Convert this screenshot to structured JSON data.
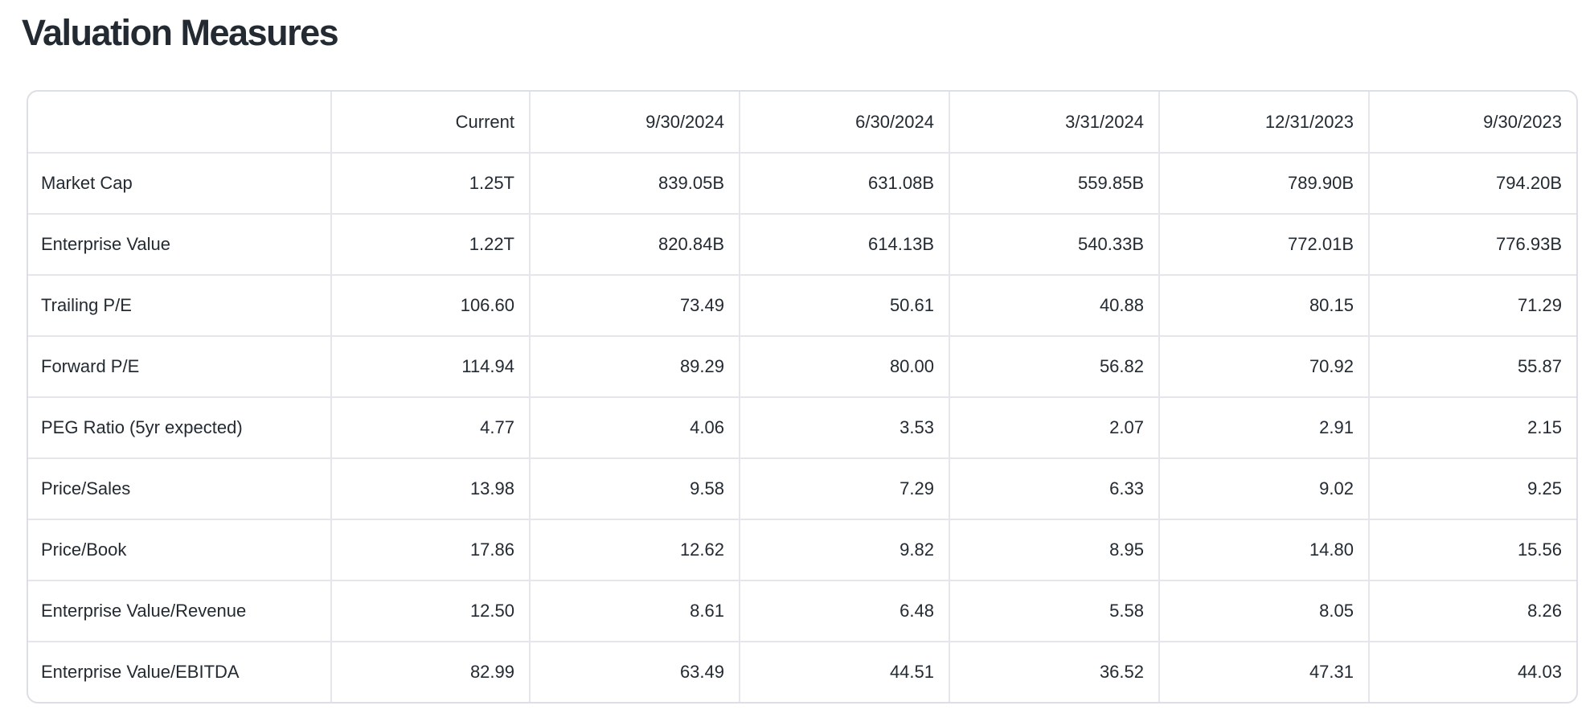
{
  "page": {
    "title": "Valuation Measures"
  },
  "table": {
    "corner_label": "",
    "columns": [
      "Current",
      "9/30/2024",
      "6/30/2024",
      "3/31/2024",
      "12/31/2023",
      "9/30/2023"
    ],
    "rows": [
      {
        "label": "Market Cap",
        "values": [
          "1.25T",
          "839.05B",
          "631.08B",
          "559.85B",
          "789.90B",
          "794.20B"
        ]
      },
      {
        "label": "Enterprise Value",
        "values": [
          "1.22T",
          "820.84B",
          "614.13B",
          "540.33B",
          "772.01B",
          "776.93B"
        ]
      },
      {
        "label": "Trailing P/E",
        "values": [
          "106.60",
          "73.49",
          "50.61",
          "40.88",
          "80.15",
          "71.29"
        ]
      },
      {
        "label": "Forward P/E",
        "values": [
          "114.94",
          "89.29",
          "80.00",
          "56.82",
          "70.92",
          "55.87"
        ]
      },
      {
        "label": "PEG Ratio (5yr expected)",
        "values": [
          "4.77",
          "4.06",
          "3.53",
          "2.07",
          "2.91",
          "2.15"
        ]
      },
      {
        "label": "Price/Sales",
        "values": [
          "13.98",
          "9.58",
          "7.29",
          "6.33",
          "9.02",
          "9.25"
        ]
      },
      {
        "label": "Price/Book",
        "values": [
          "17.86",
          "12.62",
          "9.82",
          "8.95",
          "14.80",
          "15.56"
        ]
      },
      {
        "label": "Enterprise Value/Revenue",
        "values": [
          "12.50",
          "8.61",
          "6.48",
          "5.58",
          "8.05",
          "8.26"
        ]
      },
      {
        "label": "Enterprise Value/EBITDA",
        "values": [
          "82.99",
          "63.49",
          "44.51",
          "36.52",
          "47.31",
          "44.03"
        ]
      }
    ]
  },
  "colors": {
    "text": "#232a31",
    "border": "#e4e6eb",
    "outer_border": "#dcdfe5",
    "background": "#ffffff"
  }
}
